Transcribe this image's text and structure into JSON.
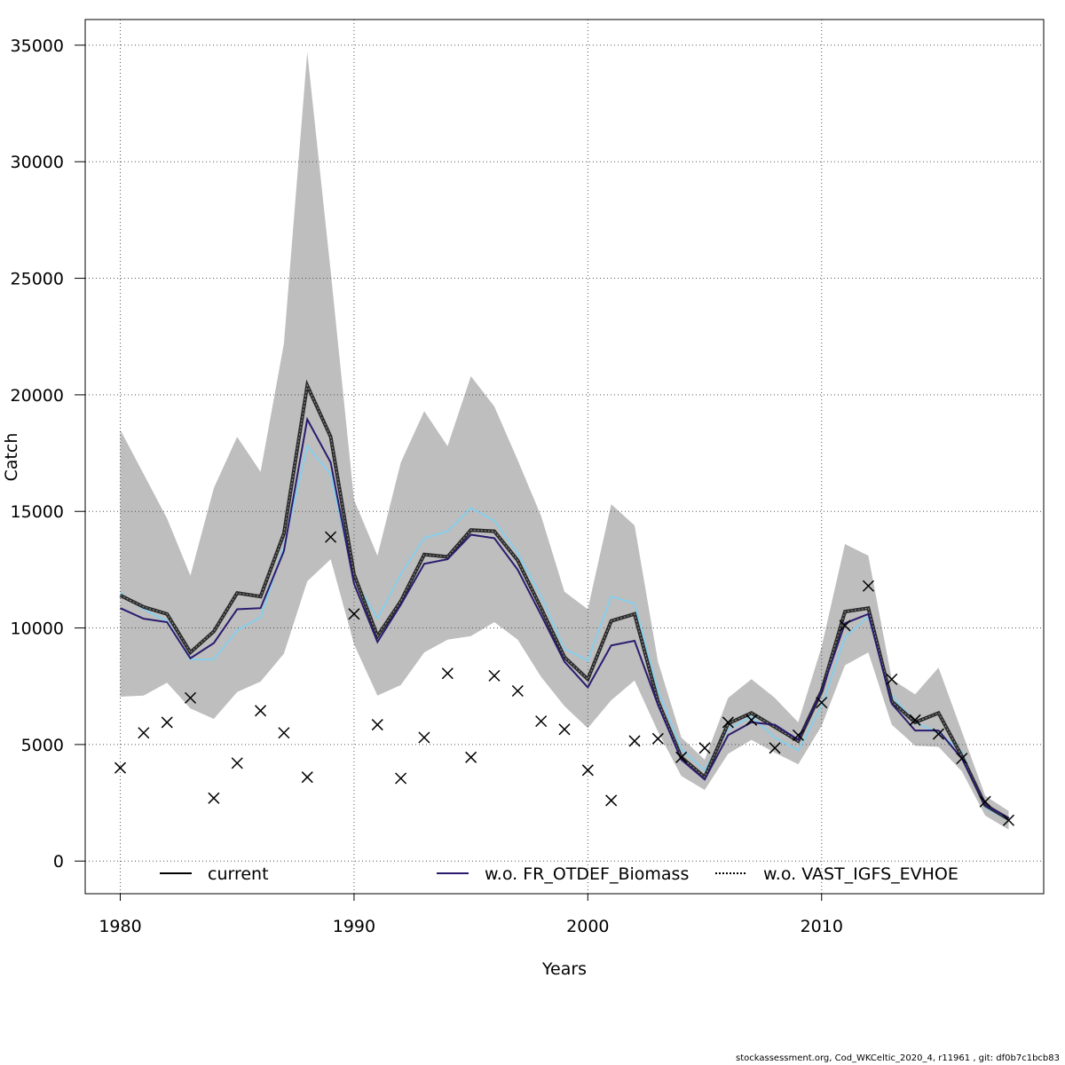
{
  "chart_data": {
    "type": "line",
    "xlabel": "Years",
    "ylabel": "Catch",
    "xlim": [
      1978.5,
      2019.5
    ],
    "ylim": [
      -1400,
      36100
    ],
    "x_ticks": [
      1980,
      1990,
      2000,
      2010
    ],
    "y_ticks": [
      0,
      5000,
      10000,
      15000,
      20000,
      25000,
      30000,
      35000
    ],
    "x_tick_labels": [
      "1980",
      "1990",
      "2000",
      "2010"
    ],
    "y_tick_labels": [
      "0",
      "5000",
      "10000",
      "15000",
      "20000",
      "25000",
      "30000",
      "35000"
    ],
    "grid": true,
    "legend_position": "bottom",
    "x": [
      1980,
      1981,
      1982,
      1983,
      1984,
      1985,
      1986,
      1987,
      1988,
      1989,
      1990,
      1991,
      1992,
      1993,
      1994,
      1995,
      1996,
      1997,
      1998,
      1999,
      2000,
      2001,
      2002,
      2003,
      2004,
      2005,
      2006,
      2007,
      2008,
      2009,
      2010,
      2011,
      2012,
      2013,
      2014,
      2015,
      2016,
      2017,
      2018
    ],
    "confidence_band": {
      "color": "#bebebe",
      "lower": [
        7050,
        7100,
        7650,
        6550,
        6100,
        7250,
        7700,
        8900,
        12000,
        12950,
        9300,
        7100,
        7550,
        8950,
        9500,
        9650,
        10250,
        9500,
        7900,
        6650,
        5700,
        6900,
        7750,
        5550,
        3650,
        3050,
        4600,
        5200,
        4650,
        4150,
        5800,
        8400,
        8950,
        5850,
        4950,
        4900,
        3850,
        1950,
        1350
      ],
      "upper": [
        18500,
        16600,
        14700,
        12250,
        16000,
        18200,
        16700,
        22200,
        34700,
        25300,
        15500,
        13100,
        17100,
        19300,
        17800,
        20800,
        19500,
        17200,
        14800,
        11550,
        10800,
        15300,
        14400,
        8550,
        5300,
        4350,
        7000,
        7800,
        7000,
        5950,
        9200,
        13600,
        13100,
        7800,
        7150,
        8300,
        5550,
        2800,
        2150
      ]
    },
    "series": [
      {
        "name": "current",
        "color": "#000000",
        "values": [
          11400,
          10900,
          10600,
          8950,
          9850,
          11500,
          11350,
          14050,
          20400,
          18200,
          12300,
          9650,
          11150,
          13150,
          13050,
          14200,
          14150,
          12900,
          10850,
          8750,
          7800,
          10300,
          10600,
          6850,
          4450,
          3600,
          5900,
          6350,
          5750,
          5150,
          7300,
          10700,
          10850,
          6850,
          5950,
          6350,
          4500,
          2400,
          1800
        ]
      },
      {
        "name": "w.o. FR_OTDEF_Biomass",
        "color": "#2b1b6e",
        "values": [
          10850,
          10400,
          10250,
          8700,
          9350,
          10800,
          10850,
          13300,
          18950,
          17100,
          11900,
          9400,
          11000,
          12750,
          12950,
          14000,
          13850,
          12500,
          10550,
          8550,
          7450,
          9250,
          9450,
          6700,
          4350,
          3500,
          5400,
          5950,
          5850,
          5200,
          7300,
          10200,
          10600,
          6750,
          5600,
          5600,
          4400,
          2400,
          1850
        ]
      },
      {
        "name": "w.o. VAST_IGFS_EVHOE",
        "color": "#87ceeb",
        "values": [
          11500,
          10800,
          10300,
          8650,
          8650,
          9900,
          10450,
          13500,
          17800,
          16600,
          12100,
          10400,
          12300,
          13850,
          14150,
          15150,
          14600,
          13200,
          11350,
          9100,
          8600,
          11350,
          11050,
          7300,
          4800,
          3900,
          5650,
          6200,
          5300,
          4750,
          6650,
          9600,
          10500,
          7100,
          5950,
          5500,
          4700,
          2300,
          1750
        ]
      }
    ],
    "observations": {
      "marker": "x",
      "values": [
        4000,
        5500,
        5950,
        7000,
        2700,
        4200,
        6450,
        5500,
        3600,
        13900,
        10600,
        5850,
        3550,
        5300,
        8050,
        4450,
        7950,
        7300,
        6000,
        5650,
        3900,
        2600,
        5150,
        5250,
        4450,
        4850,
        5950,
        6050,
        4850,
        5400,
        6800,
        10100,
        11800,
        7800,
        6050,
        5450,
        4400,
        2550,
        1750
      ]
    }
  },
  "footer_text": "stockassessment.org, Cod_WKCeltic_2020_4, r11961 , git: df0b7c1bcb83"
}
